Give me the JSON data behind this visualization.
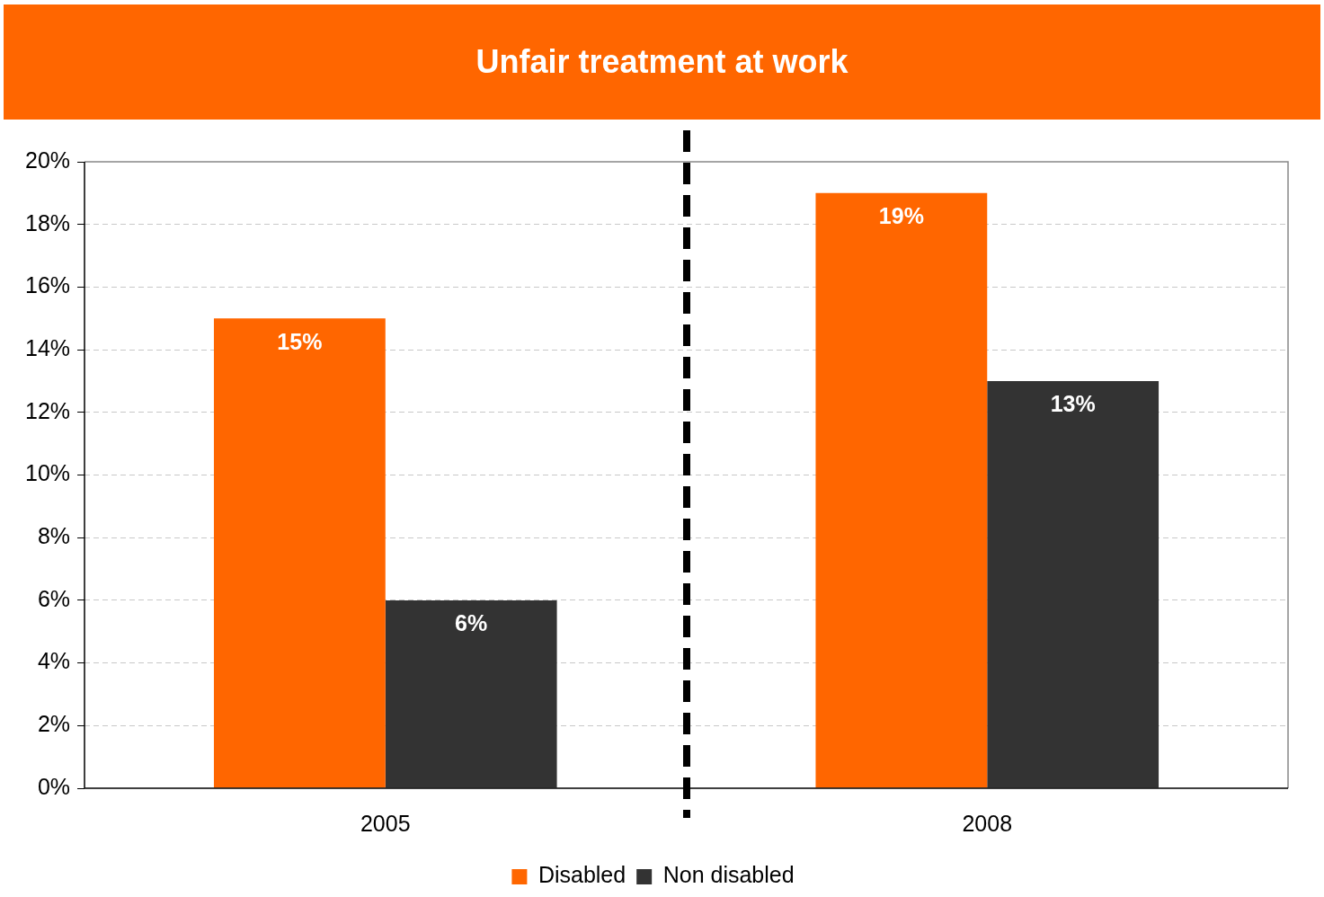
{
  "chart_data": {
    "type": "bar",
    "title": "Unfair treatment at work",
    "categories": [
      "2005",
      "2008"
    ],
    "series": [
      {
        "name": "Disabled",
        "color": "#ff6600",
        "values": [
          15,
          19
        ],
        "value_labels": [
          "15%",
          "19%"
        ]
      },
      {
        "name": "Non disabled",
        "color": "#333333",
        "values": [
          6,
          13
        ],
        "value_labels": [
          "6%",
          "13%"
        ]
      }
    ],
    "ylim": [
      0,
      20
    ],
    "yticks": [
      {
        "value": 0,
        "label": "0%"
      },
      {
        "value": 2,
        "label": "2%"
      },
      {
        "value": 4,
        "label": "4%"
      },
      {
        "value": 6,
        "label": "6%"
      },
      {
        "value": 8,
        "label": "8%"
      },
      {
        "value": 10,
        "label": "10%"
      },
      {
        "value": 12,
        "label": "12%"
      },
      {
        "value": 14,
        "label": "14%"
      },
      {
        "value": 16,
        "label": "16%"
      },
      {
        "value": 18,
        "label": "18%"
      },
      {
        "value": 20,
        "label": "20%"
      }
    ],
    "grid": "y",
    "legend": "bottom"
  }
}
